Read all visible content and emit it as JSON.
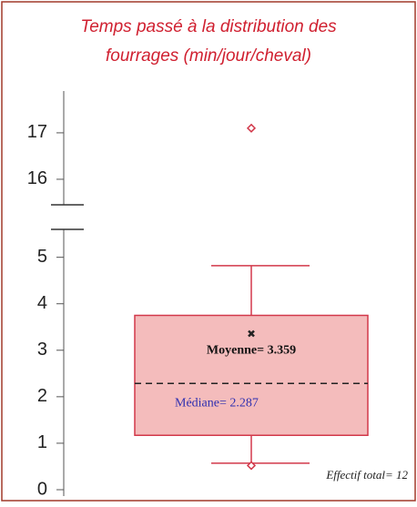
{
  "chart_data": {
    "type": "box",
    "title": [
      "Temps passé à la distribution des",
      "fourrages (min/jour/cheval)"
    ],
    "ylim": [
      0,
      5.6
    ],
    "yticks": [
      0,
      1,
      2,
      3,
      4,
      5
    ],
    "y_upper_lim": [
      15.45,
      17.9
    ],
    "y_upper_ticks": [
      16,
      17
    ],
    "box": {
      "whisker_low": 0.57,
      "q1": 1.17,
      "median": 2.287,
      "q3": 3.75,
      "whisker_high": 4.82,
      "mean": 3.359,
      "outliers": [
        0.52,
        17.1
      ]
    },
    "mean_label": "Moyenne= 3.359",
    "median_label": "Médiane= 2.287",
    "annotation": "Effectif total= 12",
    "color": "#d2384a",
    "fill": "#f4bcbc"
  }
}
